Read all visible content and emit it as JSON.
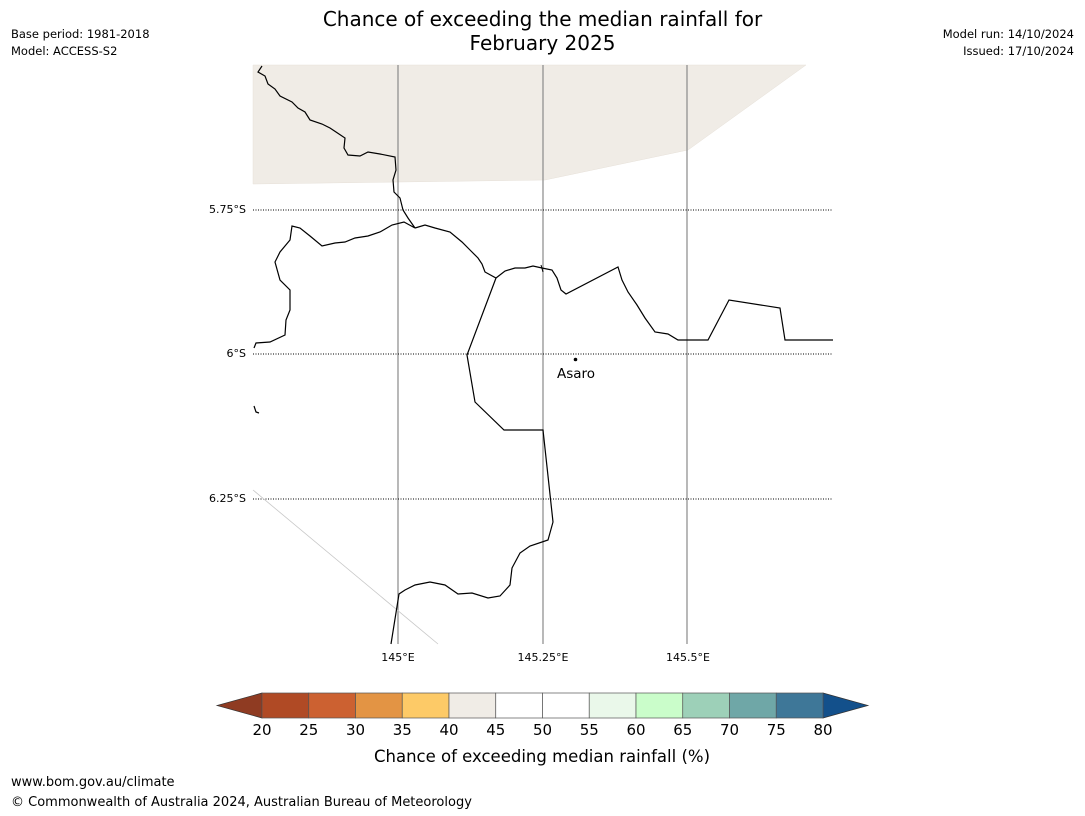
{
  "header": {
    "base_period": "Base period: 1981-2018",
    "model": "Model: ACCESS-S2",
    "title_line1": "Chance of exceeding the median rainfall for",
    "title_line2": "February 2025",
    "model_run": "Model run: 14/10/2024",
    "issued": "Issued: 17/10/2024"
  },
  "map": {
    "lat_labels": [
      "5.75°S",
      "6°S",
      "6.25°S"
    ],
    "lon_labels": [
      "145°E",
      "145.25°E",
      "145.5°E"
    ],
    "place": "Asaro",
    "shaded_band": "40-45",
    "shaded_color": "#f0ece6"
  },
  "colorbar": {
    "label": "Chance of exceeding median rainfall (%)",
    "ticks": [
      "20",
      "25",
      "30",
      "35",
      "40",
      "45",
      "50",
      "55",
      "60",
      "65",
      "70",
      "75",
      "80"
    ],
    "under_color": "#8f3b22",
    "over_color": "#13508b",
    "colors": [
      "#b04a25",
      "#cc6131",
      "#e39444",
      "#fdca67",
      "#f0ece6",
      "#ffffff",
      "#ffffff",
      "#eaf8ea",
      "#cafdca",
      "#9dd0b8",
      "#6fa7a7",
      "#3e7798"
    ]
  },
  "footer": {
    "url": "www.bom.gov.au/climate",
    "copyright": "© Commonwealth of Australia 2024, Australian Bureau of Meteorology"
  }
}
